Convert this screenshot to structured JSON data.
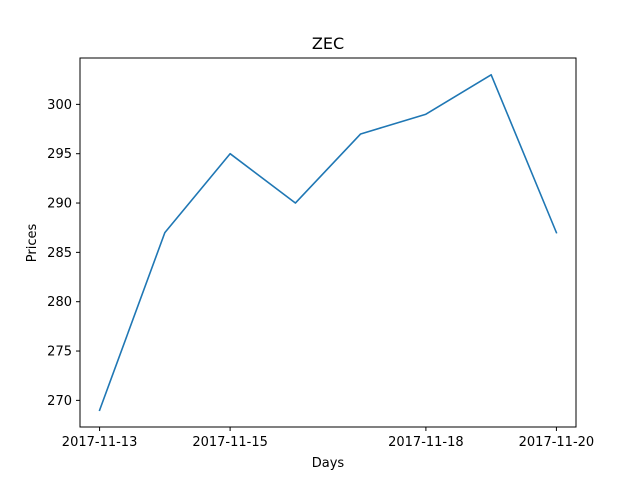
{
  "chart_data": {
    "type": "line",
    "title": "ZEC",
    "xlabel": "Days",
    "ylabel": "Prices",
    "x": [
      "2017-11-13",
      "2017-11-14",
      "2017-11-15",
      "2017-11-16",
      "2017-11-17",
      "2017-11-18",
      "2017-11-19",
      "2017-11-20"
    ],
    "series": [
      {
        "name": "",
        "values": [
          269,
          287,
          295,
          290,
          297,
          299,
          303,
          287
        ]
      }
    ],
    "x_tick_labels": [
      "2017-11-13",
      "2017-11-15",
      "2017-11-18",
      "2017-11-20"
    ],
    "y_ticks": [
      270,
      275,
      280,
      285,
      290,
      295,
      300
    ],
    "ylim": [
      267.3,
      304.7
    ],
    "xlim": [
      "2017-11-12 16:48",
      "2017-11-20 07:12"
    ],
    "grid": false,
    "colors": {
      "line": "#1f77b4"
    }
  }
}
